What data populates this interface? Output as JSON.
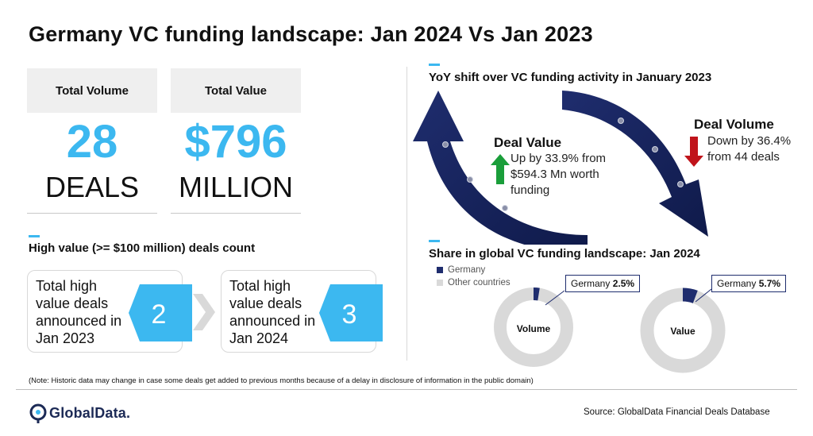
{
  "title": "Germany VC funding landscape: Jan 2024 Vs Jan 2023",
  "kpis": {
    "volume": {
      "header": "Total Volume",
      "value": "28",
      "unit": "DEALS"
    },
    "value": {
      "header": "Total Value",
      "value": "$796",
      "unit": "MILLION"
    }
  },
  "high_value": {
    "title": "High value (>= $100 million) deals count",
    "boxes": [
      {
        "text": "Total high value deals announced in Jan 2023",
        "count": "2"
      },
      {
        "text": "Total high value deals announced in Jan 2024",
        "count": "3"
      }
    ]
  },
  "yoy": {
    "title": "YoY shift over VC funding activity in January 2023",
    "deal_value": {
      "title": "Deal Value",
      "text": "Up by 33.9% from $594.3 Mn worth funding",
      "direction": "up",
      "color": "#1a9e3a"
    },
    "deal_volume": {
      "title": "Deal Volume",
      "text": "Down by 36.4% from 44 deals",
      "direction": "down",
      "color": "#c0141b"
    }
  },
  "share": {
    "title": "Share in global VC funding landscape: Jan 2024",
    "legend": [
      {
        "name": "Germany",
        "color": "#1f2d6e"
      },
      {
        "name": "Other countries",
        "color": "#d9d9d9"
      }
    ]
  },
  "chart_data": {
    "type": "pie",
    "title": "Share in global VC funding landscape: Jan 2024",
    "charts": [
      {
        "label": "Volume",
        "callout_name": "Germany",
        "callout_value": "2.5%",
        "slices": [
          {
            "name": "Germany",
            "value": 2.5
          },
          {
            "name": "Other countries",
            "value": 97.5
          }
        ]
      },
      {
        "label": "Value",
        "callout_name": "Germany",
        "callout_value": "5.7%",
        "slices": [
          {
            "name": "Germany",
            "value": 5.7
          },
          {
            "name": "Other countries",
            "value": 94.3
          }
        ]
      }
    ]
  },
  "note": "(Note: Historic data may change in case some deals get added to previous months because of a delay in disclosure of information in the public domain)",
  "footer": {
    "logo": "GlobalData.",
    "source": "Source: GlobalData Financial Deals Database"
  },
  "colors": {
    "accent": "#3cb8f0",
    "navy": "#1f2d6e",
    "grey": "#d9d9d9"
  }
}
